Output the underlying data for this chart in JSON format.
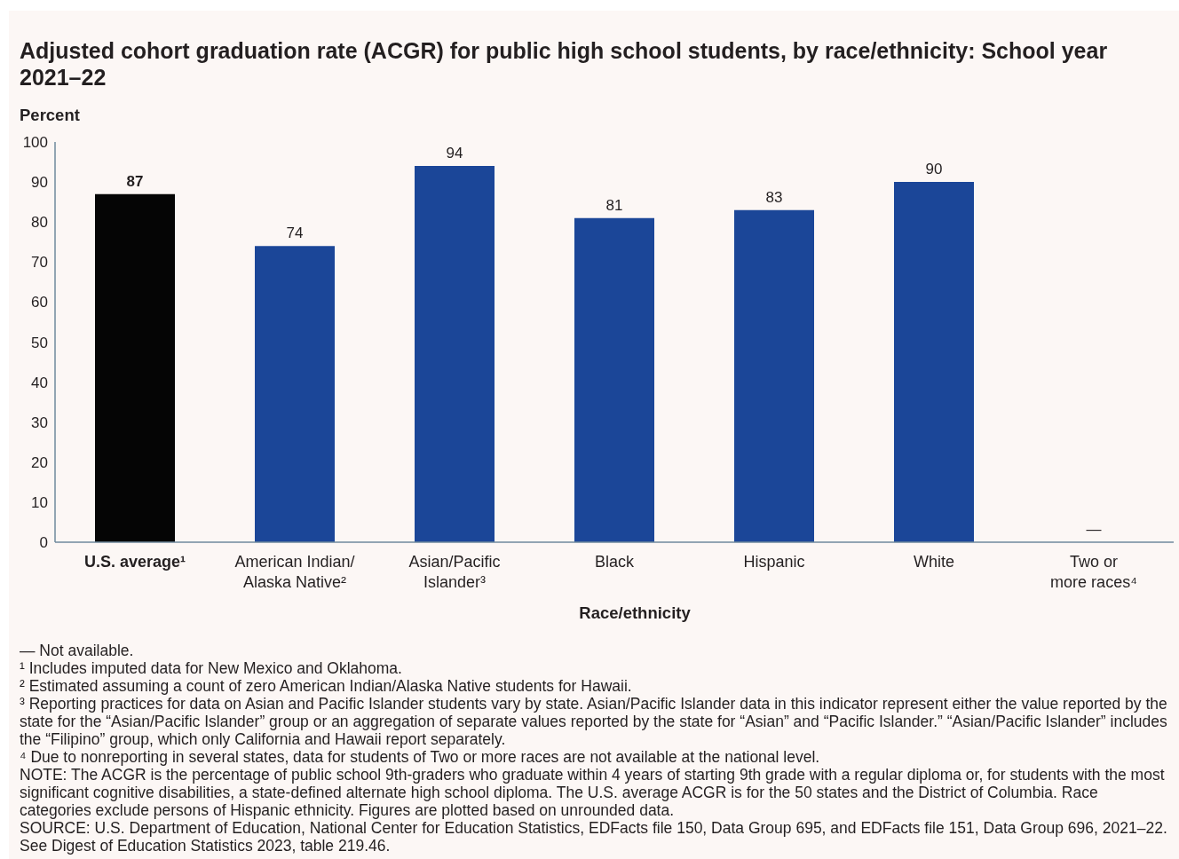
{
  "chart_data": {
    "type": "bar",
    "title": "Adjusted cohort graduation rate (ACGR) for public high school students, by race/ethnicity: School year 2021–22",
    "ylabel": "Percent",
    "xlabel": "Race/ethnicity",
    "categories": [
      "U.S. average¹",
      "American Indian/\nAlaska Native²",
      "Asian/Pacific\nIslander³",
      "Black",
      "Hispanic",
      "White",
      "Two or\nmore races⁴"
    ],
    "values": [
      87,
      74,
      94,
      81,
      83,
      90,
      null
    ],
    "colors": [
      "#050505",
      "#1b4698",
      "#1b4698",
      "#1b4698",
      "#1b4698",
      "#1b4698",
      "#1b4698"
    ],
    "value_labels": [
      "87",
      "74",
      "94",
      "81",
      "83",
      "90",
      "—"
    ],
    "ylim": [
      0,
      100
    ],
    "yticks": [
      0,
      10,
      20,
      30,
      40,
      50,
      60,
      70,
      80,
      90,
      100
    ],
    "annotations": [
      "— Not available.",
      "¹ Includes imputed data for New Mexico and Oklahoma.",
      "² Estimated assuming a count of zero American Indian/Alaska Native students for Hawaii.",
      "³ Reporting practices for data on Asian and Pacific Islander students vary by state. Asian/Pacific Islander data in this indicator represent either the value reported by the state for the “Asian/Pacific Islander” group or an aggregation of separate values reported by the state for “Asian” and “Pacific Islander.” “Asian/Pacific Islander” includes the “Filipino” group, which only California and Hawaii report separately.",
      "⁴ Due to nonreporting in several states, data for students of Two or more races are not available at the national level.",
      "NOTE: The ACGR is the percentage of public school 9th-graders who graduate within 4 years of starting 9th grade with a regular diploma or, for students with the most significant cognitive disabilities, a state-defined alternate high school diploma. The U.S. average ACGR is for the 50 states and the District of Columbia. Race categories exclude persons of Hispanic ethnicity. Figures are plotted based on unrounded data.",
      "SOURCE: U.S. Department of Education, National Center for Education Statistics, EDFacts file 150, Data Group 695, and EDFacts file 151, Data Group 696, 2021–22. See Digest of Education Statistics 2023, table 219.46."
    ]
  }
}
